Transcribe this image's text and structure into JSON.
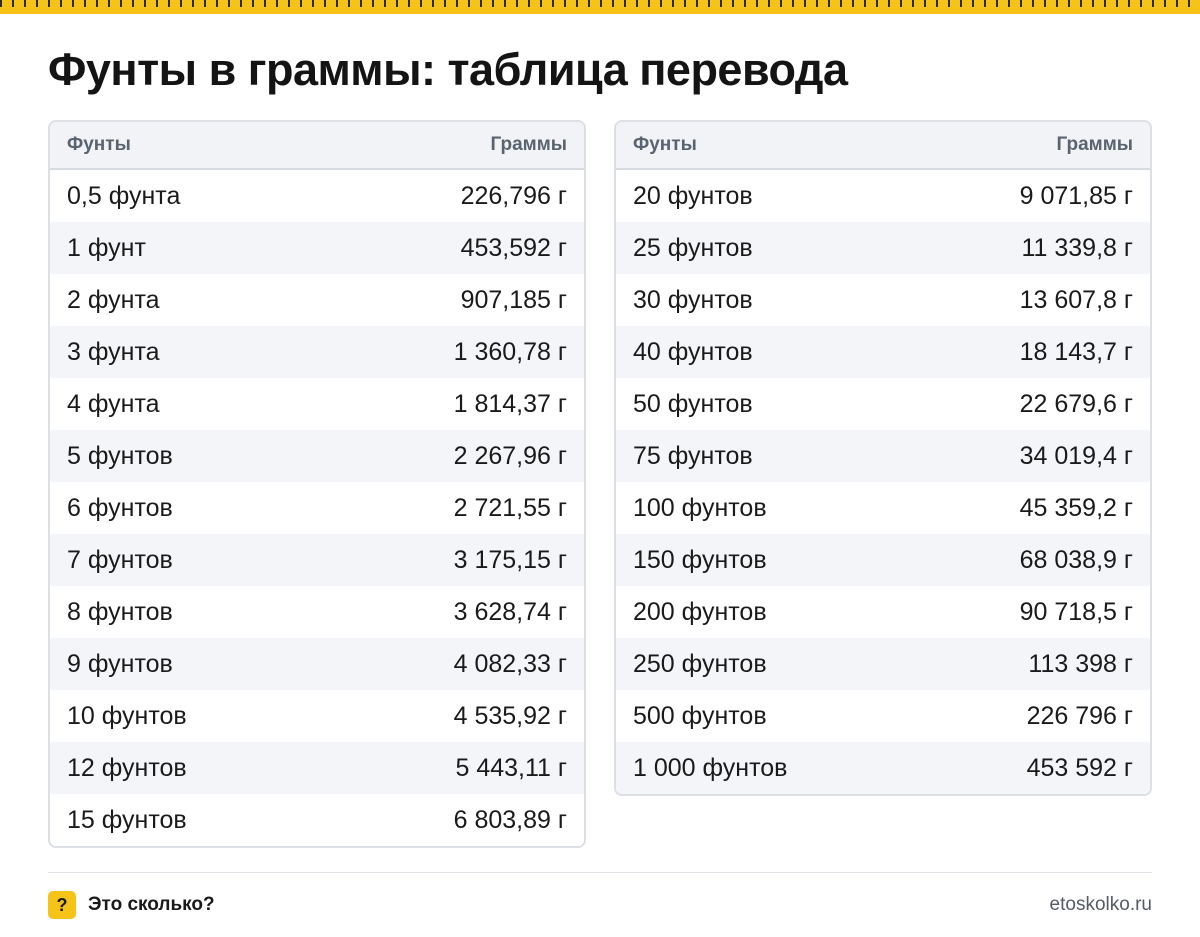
{
  "title": "Фунты в граммы: таблица перевода",
  "table_headers": {
    "pounds": "Фунты",
    "grams": "Граммы"
  },
  "left_rows": [
    {
      "pounds": "0,5 фунта",
      "grams": "226,796 г"
    },
    {
      "pounds": "1 фунт",
      "grams": "453,592 г"
    },
    {
      "pounds": "2 фунта",
      "grams": "907,185 г"
    },
    {
      "pounds": "3 фунта",
      "grams": "1 360,78 г"
    },
    {
      "pounds": "4 фунта",
      "grams": "1 814,37 г"
    },
    {
      "pounds": "5 фунтов",
      "grams": "2 267,96 г"
    },
    {
      "pounds": "6 фунтов",
      "grams": "2 721,55 г"
    },
    {
      "pounds": "7 фунтов",
      "grams": "3 175,15 г"
    },
    {
      "pounds": "8 фунтов",
      "grams": "3 628,74 г"
    },
    {
      "pounds": "9 фунтов",
      "grams": "4 082,33 г"
    },
    {
      "pounds": "10 фунтов",
      "grams": "4 535,92 г"
    },
    {
      "pounds": "12 фунтов",
      "grams": "5 443,11 г"
    },
    {
      "pounds": "15 фунтов",
      "grams": "6 803,89 г"
    }
  ],
  "right_rows": [
    {
      "pounds": "20 фунтов",
      "grams": "9 071,85 г"
    },
    {
      "pounds": "25 фунтов",
      "grams": "11 339,8 г"
    },
    {
      "pounds": "30 фунтов",
      "grams": "13 607,8 г"
    },
    {
      "pounds": "40 фунтов",
      "grams": "18 143,7 г"
    },
    {
      "pounds": "50 фунтов",
      "grams": "22 679,6 г"
    },
    {
      "pounds": "75 фунтов",
      "grams": "34 019,4 г"
    },
    {
      "pounds": "100 фунтов",
      "grams": "45 359,2 г"
    },
    {
      "pounds": "150 фунтов",
      "grams": "68 038,9 г"
    },
    {
      "pounds": "200 фунтов",
      "grams": "90 718,5 г"
    },
    {
      "pounds": "250 фунтов",
      "grams": "113 398 г"
    },
    {
      "pounds": "500 фунтов",
      "grams": "226 796 г"
    },
    {
      "pounds": "1 000 фунтов",
      "grams": "453 592 г"
    }
  ],
  "footer": {
    "badge": "?",
    "brand": "Это сколько?",
    "site": "etoskolko.ru"
  },
  "colors": {
    "accent": "#f6c418",
    "header_bg": "#f1f3f6",
    "row_alt": "#f3f5f8"
  }
}
